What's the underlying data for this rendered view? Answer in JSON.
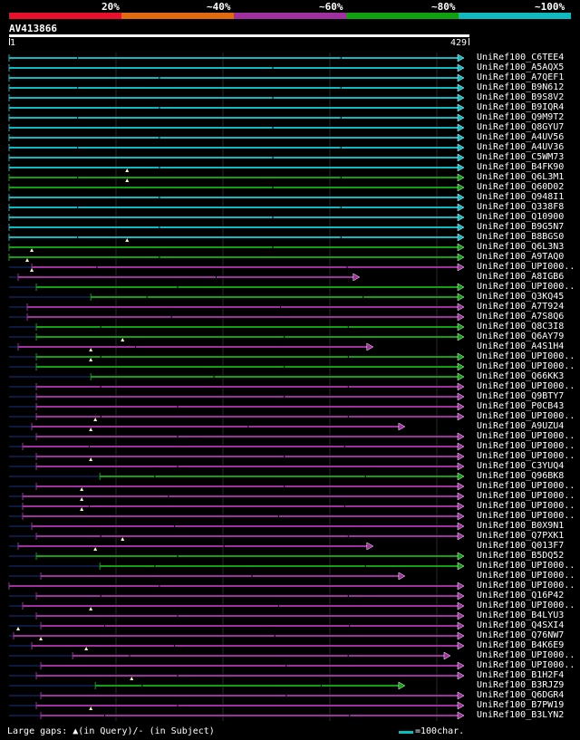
{
  "identity_scale": {
    "labels": [
      "20%",
      "~40%",
      "~60%",
      "~80%",
      "~100%"
    ],
    "colors": [
      "#e8102c",
      "#e06a10",
      "#a030a0",
      "#10a010",
      "#10b8c0"
    ]
  },
  "query": {
    "name": "AV413866",
    "start": "1",
    "end": "429"
  },
  "hits": [
    {
      "label": "UniRef100_C6TEE4",
      "color": "#10b8c0",
      "s": 0.0,
      "e": 1.0,
      "tri": null,
      "gap": null
    },
    {
      "label": "UniRef100_A5AQX5",
      "color": "#10b8c0",
      "s": 0.0,
      "e": 1.0,
      "tri": null,
      "gap": null
    },
    {
      "label": "UniRef100_A7QEF1",
      "color": "#10b8c0",
      "s": 0.0,
      "e": 1.0,
      "tri": null,
      "gap": null
    },
    {
      "label": "UniRef100_B9N612",
      "color": "#10b8c0",
      "s": 0.0,
      "e": 1.0,
      "tri": null,
      "gap": null
    },
    {
      "label": "UniRef100_B9S8V2",
      "color": "#10b8c0",
      "s": 0.0,
      "e": 1.0,
      "tri": null,
      "gap": null
    },
    {
      "label": "UniRef100_B9IQR4",
      "color": "#10b8c0",
      "s": 0.0,
      "e": 1.0,
      "tri": null,
      "gap": null
    },
    {
      "label": "UniRef100_Q9M9T2",
      "color": "#10b8c0",
      "s": 0.0,
      "e": 1.0,
      "tri": null,
      "gap": null
    },
    {
      "label": "UniRef100_Q8GYU7",
      "color": "#10b8c0",
      "s": 0.0,
      "e": 1.0,
      "tri": null,
      "gap": null
    },
    {
      "label": "UniRef100_A4UV56",
      "color": "#10b8c0",
      "s": 0.0,
      "e": 1.0,
      "tri": null,
      "gap": null
    },
    {
      "label": "UniRef100_A4UV36",
      "color": "#10b8c0",
      "s": 0.0,
      "e": 1.0,
      "tri": null,
      "gap": null
    },
    {
      "label": "UniRef100_C5WM73",
      "color": "#10b8c0",
      "s": 0.0,
      "e": 1.0,
      "tri": null,
      "gap": null
    },
    {
      "label": "UniRef100_B4FK90",
      "color": "#10b8c0",
      "s": 0.0,
      "e": 1.0,
      "tri": null,
      "gap": null
    },
    {
      "label": "UniRef100_Q6L3M1",
      "color": "#10a010",
      "s": 0.0,
      "e": 1.0,
      "tri": 0.26,
      "gap": null
    },
    {
      "label": "UniRef100_Q60D02",
      "color": "#10a010",
      "s": 0.0,
      "e": 1.0,
      "tri": 0.26,
      "gap": null
    },
    {
      "label": "UniRef100_Q948I1",
      "color": "#10b8c0",
      "s": 0.0,
      "e": 1.0,
      "tri": null,
      "gap": null
    },
    {
      "label": "UniRef100_Q338F8",
      "color": "#10b8c0",
      "s": 0.0,
      "e": 1.0,
      "tri": null,
      "gap": null
    },
    {
      "label": "UniRef100_Q10900",
      "color": "#10b8c0",
      "s": 0.0,
      "e": 1.0,
      "tri": null,
      "gap": null
    },
    {
      "label": "UniRef100_B9G5N7",
      "color": "#10b8c0",
      "s": 0.0,
      "e": 1.0,
      "tri": null,
      "gap": null
    },
    {
      "label": "UniRef100_B8BGS0",
      "color": "#10b8c0",
      "s": 0.0,
      "e": 1.0,
      "tri": null,
      "gap": null
    },
    {
      "label": "UniRef100_Q6L3N3",
      "color": "#10a010",
      "s": 0.0,
      "e": 1.0,
      "tri": 0.26,
      "gap": null
    },
    {
      "label": "UniRef100_A9TAQ0",
      "color": "#10a010",
      "s": 0.0,
      "e": 1.0,
      "tri": 0.05,
      "gap": null
    },
    {
      "label": "UniRef100_UPI000..",
      "color": "#a030a0",
      "s": 0.05,
      "e": 1.0,
      "tri": 0.04,
      "gap": null
    },
    {
      "label": "UniRef100_A8IGB6",
      "color": "#a030a0",
      "s": 0.02,
      "e": 0.77,
      "tri": 0.05,
      "gap": null
    },
    {
      "label": "UniRef100_UPI000..",
      "color": "#10a010",
      "s": 0.06,
      "e": 1.0,
      "tri": null,
      "gap": null
    },
    {
      "label": "UniRef100_Q3KQ45",
      "color": "#10a010",
      "s": 0.18,
      "e": 1.0,
      "tri": null,
      "gap": null
    },
    {
      "label": "UniRef100_A7T924",
      "color": "#a030a0",
      "s": 0.04,
      "e": 1.0,
      "tri": null,
      "gap": null
    },
    {
      "label": "UniRef100_A7S8Q6",
      "color": "#a030a0",
      "s": 0.04,
      "e": 1.0,
      "tri": null,
      "gap": null
    },
    {
      "label": "UniRef100_Q8C3I8",
      "color": "#10a010",
      "s": 0.06,
      "e": 1.0,
      "tri": null,
      "gap": null
    },
    {
      "label": "UniRef100_Q6AY79",
      "color": "#10a010",
      "s": 0.06,
      "e": 1.0,
      "tri": null,
      "gap": null
    },
    {
      "label": "UniRef100_A4S1H4",
      "color": "#a030a0",
      "s": 0.02,
      "e": 0.8,
      "tri": 0.25,
      "gap": null
    },
    {
      "label": "UniRef100_UPI000..",
      "color": "#10a010",
      "s": 0.06,
      "e": 1.0,
      "tri": 0.18,
      "gap": null
    },
    {
      "label": "UniRef100_UPI000..",
      "color": "#10a010",
      "s": 0.06,
      "e": 1.0,
      "tri": 0.18,
      "gap": null
    },
    {
      "label": "UniRef100_Q66KK3",
      "color": "#10a010",
      "s": 0.18,
      "e": 1.0,
      "tri": null,
      "gap": null
    },
    {
      "label": "UniRef100_UPI000..",
      "color": "#a030a0",
      "s": 0.06,
      "e": 1.0,
      "tri": null,
      "gap": null
    },
    {
      "label": "UniRef100_Q9BTY7",
      "color": "#a030a0",
      "s": 0.06,
      "e": 1.0,
      "tri": null,
      "gap": null
    },
    {
      "label": "UniRef100_P0CB43",
      "color": "#a030a0",
      "s": 0.06,
      "e": 1.0,
      "tri": null,
      "gap": null
    },
    {
      "label": "UniRef100_UPI000..",
      "color": "#a030a0",
      "s": 0.06,
      "e": 1.0,
      "tri": null,
      "gap": null
    },
    {
      "label": "UniRef100_A9UZU4",
      "color": "#a030a0",
      "s": 0.05,
      "e": 0.87,
      "tri": 0.19,
      "gap": null
    },
    {
      "label": "UniRef100_UPI000..",
      "color": "#a030a0",
      "s": 0.06,
      "e": 1.0,
      "tri": 0.18,
      "gap": null
    },
    {
      "label": "UniRef100_UPI000..",
      "color": "#a030a0",
      "s": 0.03,
      "e": 1.0,
      "tri": null,
      "gap": null
    },
    {
      "label": "UniRef100_UPI000..",
      "color": "#a030a0",
      "s": 0.06,
      "e": 1.0,
      "tri": null,
      "gap": null
    },
    {
      "label": "UniRef100_C3YUQ4",
      "color": "#a030a0",
      "s": 0.06,
      "e": 1.0,
      "tri": 0.18,
      "gap": null
    },
    {
      "label": "UniRef100_Q96BK8",
      "color": "#10a010",
      "s": 0.2,
      "e": 1.0,
      "tri": null,
      "gap": null
    },
    {
      "label": "UniRef100_UPI000..",
      "color": "#a030a0",
      "s": 0.06,
      "e": 1.0,
      "tri": null,
      "gap": null
    },
    {
      "label": "UniRef100_UPI000..",
      "color": "#a030a0",
      "s": 0.03,
      "e": 1.0,
      "tri": 0.16,
      "gap": null
    },
    {
      "label": "UniRef100_UPI000..",
      "color": "#a030a0",
      "s": 0.03,
      "e": 1.0,
      "tri": 0.16,
      "gap": null
    },
    {
      "label": "UniRef100_UPI000..",
      "color": "#a030a0",
      "s": 0.03,
      "e": 1.0,
      "tri": 0.16,
      "gap": null
    },
    {
      "label": "UniRef100_B0X9N1",
      "color": "#a030a0",
      "s": 0.05,
      "e": 1.0,
      "tri": null,
      "gap": null
    },
    {
      "label": "UniRef100_Q7PXK1",
      "color": "#a030a0",
      "s": 0.06,
      "e": 1.0,
      "tri": null,
      "gap": null
    },
    {
      "label": "UniRef100_Q013F7",
      "color": "#a030a0",
      "s": 0.02,
      "e": 0.8,
      "tri": 0.25,
      "gap": null
    },
    {
      "label": "UniRef100_B5DQ52",
      "color": "#10a010",
      "s": 0.06,
      "e": 1.0,
      "tri": 0.19,
      "gap": null
    },
    {
      "label": "UniRef100_UPI000..",
      "color": "#10a010",
      "s": 0.2,
      "e": 1.0,
      "tri": null,
      "gap": null
    },
    {
      "label": "UniRef100_UPI000..",
      "color": "#a030a0",
      "s": 0.07,
      "e": 0.87,
      "tri": null,
      "gap": null
    },
    {
      "label": "UniRef100_UPI000..",
      "color": "#a030a0",
      "s": 0.0,
      "e": 1.0,
      "tri": null,
      "gap": null
    },
    {
      "label": "UniRef100_Q16P42",
      "color": "#a030a0",
      "s": 0.06,
      "e": 1.0,
      "tri": null,
      "gap": null
    },
    {
      "label": "UniRef100_UPI000..",
      "color": "#a030a0",
      "s": 0.03,
      "e": 1.0,
      "tri": null,
      "gap": null
    },
    {
      "label": "UniRef100_B4LYU3",
      "color": "#a030a0",
      "s": 0.06,
      "e": 1.0,
      "tri": 0.18,
      "gap": null
    },
    {
      "label": "UniRef100_Q4SXI4",
      "color": "#a030a0",
      "s": 0.07,
      "e": 1.0,
      "tri": null,
      "gap": null
    },
    {
      "label": "UniRef100_Q76NW7",
      "color": "#a030a0",
      "s": 0.01,
      "e": 1.0,
      "tri": 0.02,
      "gap": null
    },
    {
      "label": "UniRef100_B4K6E9",
      "color": "#a030a0",
      "s": 0.05,
      "e": 1.0,
      "tri": 0.07,
      "gap": null
    },
    {
      "label": "UniRef100_UPI000..",
      "color": "#a030a0",
      "s": 0.14,
      "e": 0.97,
      "tri": 0.17,
      "gap": null
    },
    {
      "label": "UniRef100_UPI000..",
      "color": "#a030a0",
      "s": 0.07,
      "e": 1.0,
      "tri": null,
      "gap": null
    },
    {
      "label": "UniRef100_B1H2F4",
      "color": "#a030a0",
      "s": 0.06,
      "e": 1.0,
      "tri": null,
      "gap": null
    },
    {
      "label": "UniRef100_B3RJZ9",
      "color": "#10a010",
      "s": 0.19,
      "e": 0.87,
      "tri": 0.27,
      "gap": null
    },
    {
      "label": "UniRef100_Q6DGR4",
      "color": "#a030a0",
      "s": 0.07,
      "e": 1.0,
      "tri": null,
      "gap": null
    },
    {
      "label": "UniRef100_B7PW19",
      "color": "#a030a0",
      "s": 0.06,
      "e": 1.0,
      "tri": null,
      "gap": null
    },
    {
      "label": "UniRef100_B3LYN2",
      "color": "#a030a0",
      "s": 0.07,
      "e": 1.0,
      "tri": 0.18,
      "gap": null
    }
  ],
  "legend": {
    "large_gaps": "Large gaps: ",
    "tri_symbol": "▲",
    "in_query": "(in Query)/",
    "dash_symbol": "-",
    "in_subject": " (in Subject)",
    "scale": "=100char."
  }
}
